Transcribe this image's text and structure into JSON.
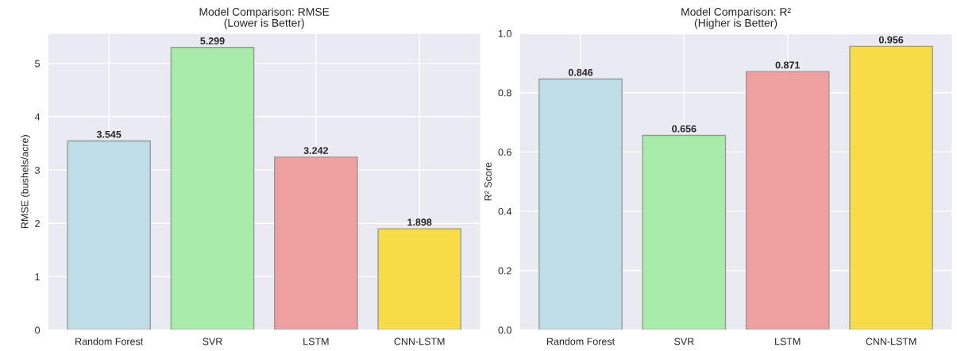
{
  "chart_data": [
    {
      "type": "bar",
      "title": "Model Comparison: RMSE\n(Lower is Better)",
      "ylabel": "RMSE (bushels/acre)",
      "categories": [
        "Random Forest",
        "SVR",
        "LSTM",
        "CNN-LSTM"
      ],
      "values": [
        3.545,
        5.299,
        3.242,
        1.898
      ],
      "colors": [
        "#bfdde6",
        "#a8ebaa",
        "#ee9fa0",
        "#f7dc48"
      ],
      "ylim": [
        0,
        5.564
      ],
      "yticks": [
        0,
        1,
        2,
        3,
        4,
        5
      ],
      "grid": true,
      "data_labels": true
    },
    {
      "type": "bar",
      "title": "Model Comparison: R²\n(Higher is Better)",
      "ylabel": "R² Score",
      "categories": [
        "Random Forest",
        "SVR",
        "LSTM",
        "CNN-LSTM"
      ],
      "values": [
        0.846,
        0.656,
        0.871,
        0.956
      ],
      "colors": [
        "#bfdde6",
        "#a8ebaa",
        "#ee9fa0",
        "#f7dc48"
      ],
      "ylim": [
        0,
        1.0
      ],
      "yticks": [
        {
          "value": 0,
          "label": "0.0"
        },
        0.2,
        0.4,
        0.6,
        0.8,
        {
          "value": 1.0,
          "label": "1.0"
        }
      ],
      "grid": true,
      "data_labels": true
    }
  ]
}
